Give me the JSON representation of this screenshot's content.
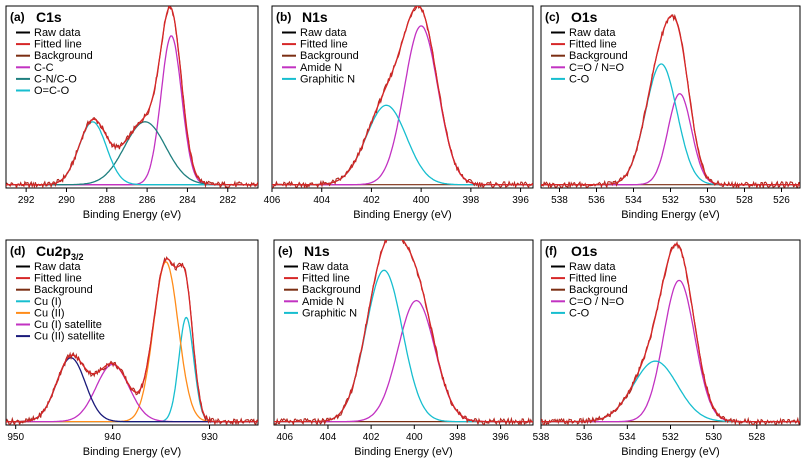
{
  "chart_data": [
    {
      "type": "line",
      "panel_label": "(a)",
      "title": "C1s",
      "title_sub": "",
      "xlabel": "Binding Energy (eV)",
      "xlim": [
        293,
        280.5
      ],
      "xticks": [
        292,
        290,
        288,
        286,
        284,
        282
      ],
      "ylim": [
        0,
        1.1
      ],
      "series": [
        {
          "name": "Raw data",
          "color": "#000000",
          "kind": "raw"
        },
        {
          "name": "Fitted line",
          "color": "#d62728",
          "kind": "fit"
        },
        {
          "name": "Background",
          "color": "#7b2e12",
          "kind": "background",
          "level": 0.02
        },
        {
          "name": "C-C",
          "color": "#c232c2",
          "kind": "peak",
          "center": 284.8,
          "fwhm": 1.2,
          "height": 0.9
        },
        {
          "name": "C-N/C-O",
          "color": "#1f7f7f",
          "kind": "peak",
          "center": 286.1,
          "fwhm": 2.4,
          "height": 0.38
        },
        {
          "name": "O=C-O",
          "color": "#17becf",
          "kind": "peak",
          "center": 288.7,
          "fwhm": 1.6,
          "height": 0.38
        }
      ]
    },
    {
      "type": "line",
      "panel_label": "(b)",
      "title": "N1s",
      "title_sub": "",
      "xlabel": "Binding Energy (eV)",
      "xlim": [
        406,
        395.5
      ],
      "xticks": [
        406,
        404,
        402,
        400,
        398,
        396
      ],
      "ylim": [
        0,
        1.1
      ],
      "series": [
        {
          "name": "Raw data",
          "color": "#000000",
          "kind": "raw"
        },
        {
          "name": "Fitted line",
          "color": "#d62728",
          "kind": "fit"
        },
        {
          "name": "Background",
          "color": "#7b2e12",
          "kind": "background",
          "level": 0.02
        },
        {
          "name": "Amide N",
          "color": "#c232c2",
          "kind": "peak",
          "center": 400.0,
          "fwhm": 1.6,
          "height": 0.96
        },
        {
          "name": "Graphitic N",
          "color": "#17becf",
          "kind": "peak",
          "center": 401.4,
          "fwhm": 1.9,
          "height": 0.48
        }
      ]
    },
    {
      "type": "line",
      "panel_label": "(c)",
      "title": "O1s",
      "title_sub": "",
      "xlabel": "Binding Energy (eV)",
      "xlim": [
        539,
        525
      ],
      "xticks": [
        538,
        536,
        534,
        532,
        530,
        528,
        526
      ],
      "ylim": [
        0,
        1.1
      ],
      "series": [
        {
          "name": "Raw data",
          "color": "#000000",
          "kind": "raw"
        },
        {
          "name": "Fitted line",
          "color": "#d62728",
          "kind": "fit"
        },
        {
          "name": "Background",
          "color": "#7b2e12",
          "kind": "background",
          "level": 0.02
        },
        {
          "name": "C=O / N=O",
          "color": "#c232c2",
          "kind": "peak",
          "center": 531.5,
          "fwhm": 1.5,
          "height": 0.55
        },
        {
          "name": "C-O",
          "color": "#17becf",
          "kind": "peak",
          "center": 532.5,
          "fwhm": 2.0,
          "height": 0.73
        }
      ]
    },
    {
      "type": "line",
      "panel_label": "(d)",
      "title": "Cu2p",
      "title_sub": "3/2",
      "xlabel": "Binding Energy (eV)",
      "xlim": [
        951,
        925
      ],
      "xticks": [
        950,
        940,
        930
      ],
      "ylim": [
        0,
        1.1
      ],
      "series": [
        {
          "name": "Raw data",
          "color": "#000000",
          "kind": "raw"
        },
        {
          "name": "Fitted line",
          "color": "#d62728",
          "kind": "fit"
        },
        {
          "name": "Background",
          "color": "#7b2e12",
          "kind": "background",
          "level": 0.02
        },
        {
          "name": "Cu (I)",
          "color": "#17becf",
          "kind": "peak",
          "center": 932.4,
          "fwhm": 1.8,
          "height": 0.62
        },
        {
          "name": "Cu (II)",
          "color": "#ff8c1a",
          "kind": "peak",
          "center": 934.5,
          "fwhm": 3.0,
          "height": 0.95
        },
        {
          "name": "Cu (I) satellite",
          "color": "#c232c2",
          "kind": "peak",
          "center": 940.0,
          "fwhm": 4.0,
          "height": 0.34
        },
        {
          "name": "Cu (II) satellite",
          "color": "#1a1a7a",
          "kind": "peak",
          "center": 944.3,
          "fwhm": 3.5,
          "height": 0.38
        }
      ]
    },
    {
      "type": "line",
      "panel_label": "(e)",
      "title": "N1s",
      "title_sub": "",
      "xlabel": "Binding Energy (eV)",
      "xlim": [
        406.5,
        394.5
      ],
      "xticks": [
        406,
        404,
        402,
        400,
        398,
        396
      ],
      "ylim": [
        0,
        1.1
      ],
      "series": [
        {
          "name": "Raw data",
          "color": "#000000",
          "kind": "raw"
        },
        {
          "name": "Fitted line",
          "color": "#d62728",
          "kind": "fit"
        },
        {
          "name": "Background",
          "color": "#7b2e12",
          "kind": "background",
          "level": 0.02
        },
        {
          "name": "Amide N",
          "color": "#c232c2",
          "kind": "peak",
          "center": 399.9,
          "fwhm": 2.0,
          "height": 0.72
        },
        {
          "name": "Graphitic N",
          "color": "#17becf",
          "kind": "peak",
          "center": 401.4,
          "fwhm": 2.0,
          "height": 0.9
        }
      ]
    },
    {
      "type": "line",
      "panel_label": "(f)",
      "title": "O1s",
      "title_sub": "",
      "xlabel": "Binding Energy (eV)",
      "xlim": [
        538,
        526
      ],
      "xticks": [
        538,
        536,
        534,
        532,
        530,
        528
      ],
      "ylim": [
        0,
        1.1
      ],
      "series": [
        {
          "name": "Raw data",
          "color": "#000000",
          "kind": "raw"
        },
        {
          "name": "Fitted line",
          "color": "#d62728",
          "kind": "fit"
        },
        {
          "name": "Background",
          "color": "#7b2e12",
          "kind": "background",
          "level": 0.02
        },
        {
          "name": "C=O / N=O",
          "color": "#c232c2",
          "kind": "peak",
          "center": 531.6,
          "fwhm": 1.7,
          "height": 0.84
        },
        {
          "name": "C-O",
          "color": "#17becf",
          "kind": "peak",
          "center": 532.7,
          "fwhm": 2.4,
          "height": 0.36
        }
      ]
    }
  ]
}
